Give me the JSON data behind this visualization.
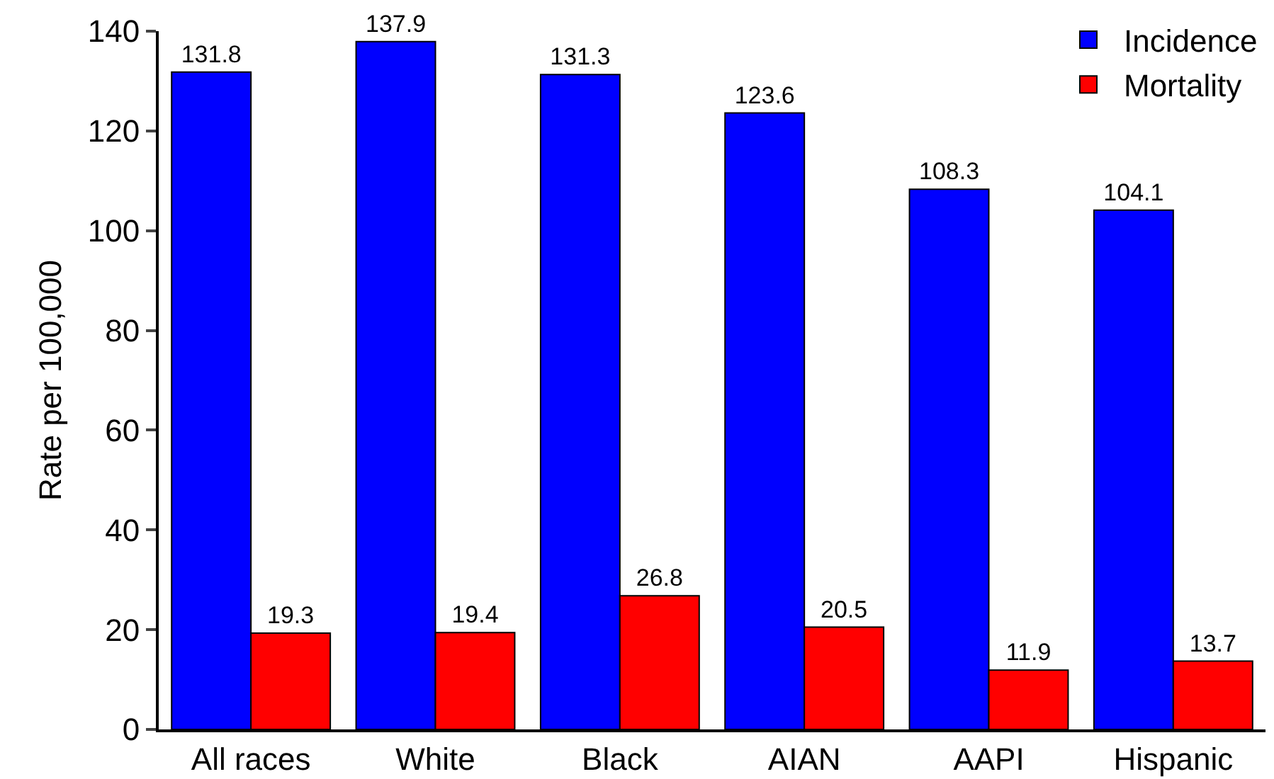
{
  "chart_data": {
    "type": "bar",
    "ylabel": "Rate per 100,000",
    "categories": [
      "All races",
      "White",
      "Black",
      "AIAN",
      "AAPI",
      "Hispanic"
    ],
    "series": [
      {
        "name": "Incidence",
        "color": "#0000ff",
        "values": [
          131.8,
          137.9,
          131.3,
          123.6,
          108.3,
          104.1
        ]
      },
      {
        "name": "Mortality",
        "color": "#ff0000",
        "values": [
          19.3,
          19.4,
          26.8,
          20.5,
          11.9,
          13.7
        ]
      }
    ],
    "ylim": [
      0,
      140
    ],
    "yticks": [
      0,
      20,
      40,
      60,
      80,
      100,
      120,
      140
    ],
    "grid": false,
    "legend": "top right",
    "data_labels": true
  }
}
